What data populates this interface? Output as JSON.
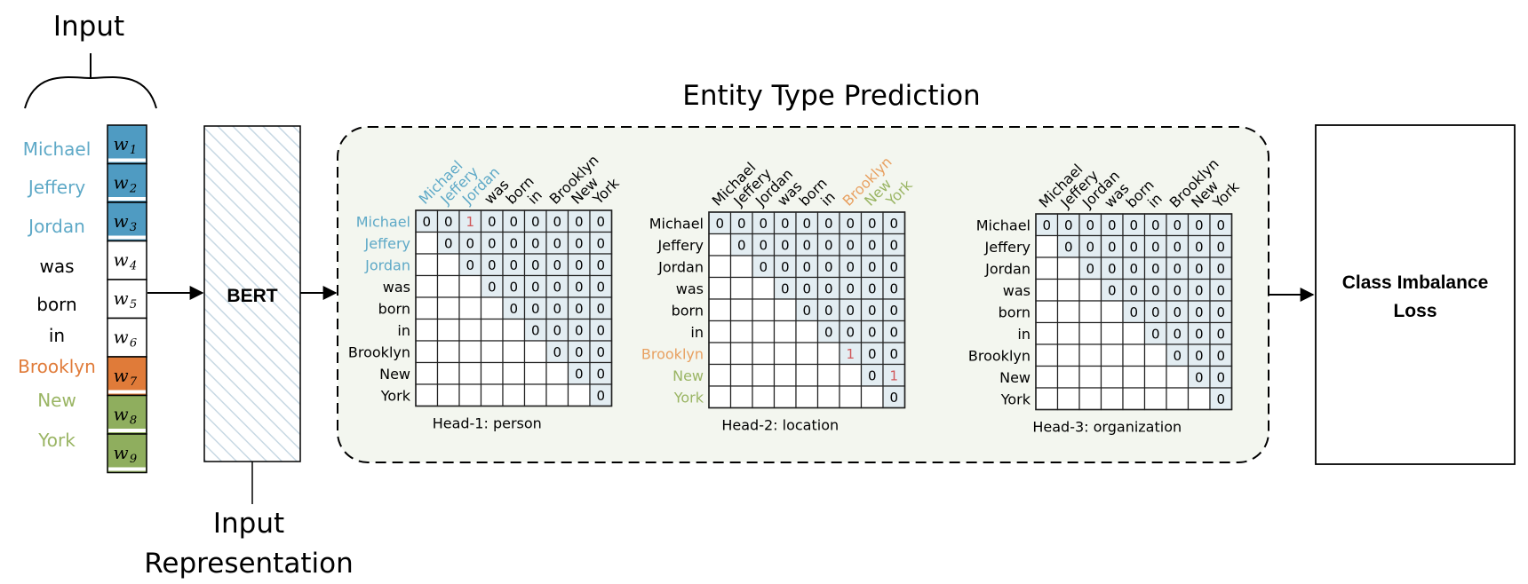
{
  "input_title": "Input",
  "representation_title_line1": "Input",
  "representation_title_line2": "Representation",
  "bert_label": "BERT",
  "prediction_title": "Entity Type Prediction",
  "loss_label_line1": "Class Imbalance",
  "loss_label_line2": "Loss",
  "colors": {
    "person": "#5ea9c7",
    "location": "#e07b39",
    "location_light": "#9ab564",
    "location_matrix": "#e8a060",
    "person_token_fill": "#4f9bc2",
    "location_token_fill": "#e07b39",
    "org_token_fill": "#8fae5e",
    "upper_cell_fill": "#e3edf2",
    "dashed_panel_fill": "#f3f6ef",
    "one_value": "#d0585a"
  },
  "words": [
    {
      "text": "Michael",
      "token": "w",
      "sub": "1",
      "type": "person"
    },
    {
      "text": "Jeffery",
      "token": "w",
      "sub": "2",
      "type": "person"
    },
    {
      "text": "Jordan",
      "token": "w",
      "sub": "3",
      "type": "person"
    },
    {
      "text": "was",
      "token": "w",
      "sub": "4",
      "type": "none"
    },
    {
      "text": "born",
      "token": "w",
      "sub": "5",
      "type": "none"
    },
    {
      "text": "in",
      "token": "w",
      "sub": "6",
      "type": "none"
    },
    {
      "text": "Brooklyn",
      "token": "w",
      "sub": "7",
      "type": "location"
    },
    {
      "text": "New",
      "token": "w",
      "sub": "8",
      "type": "location2"
    },
    {
      "text": "York",
      "token": "w",
      "sub": "9",
      "type": "location2"
    }
  ],
  "heads": [
    {
      "caption": "Head-1: person",
      "highlight": "person",
      "labels": [
        "Michael",
        "Jeffery",
        "Jordan",
        "was",
        "born",
        "in",
        "Brooklyn",
        "New",
        "York"
      ],
      "highlighted_indices": [
        0,
        1,
        2
      ],
      "ones": [
        [
          0,
          2
        ]
      ]
    },
    {
      "caption": "Head-2: location",
      "highlight": "location",
      "labels": [
        "Michael",
        "Jeffery",
        "Jordan",
        "was",
        "born",
        "in",
        "Brooklyn",
        "New",
        "York"
      ],
      "highlighted_indices": [
        6,
        7,
        8
      ],
      "ones": [
        [
          6,
          6
        ],
        [
          7,
          8
        ]
      ]
    },
    {
      "caption": "Head-3: organization",
      "highlight": "none",
      "labels": [
        "Michael",
        "Jeffery",
        "Jordan",
        "was",
        "born",
        "in",
        "Brooklyn",
        "New",
        "York"
      ],
      "highlighted_indices": [],
      "ones": []
    }
  ]
}
